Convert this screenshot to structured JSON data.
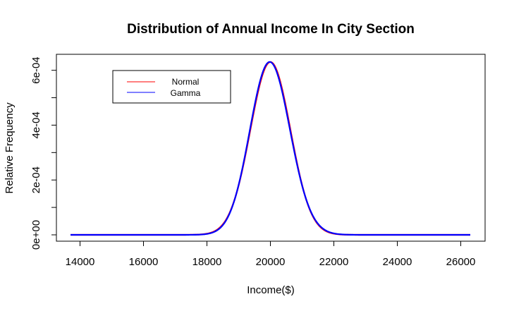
{
  "chart_data": {
    "type": "line",
    "title": "Distribution of Annual Income In City Section",
    "xlabel": "Income($)",
    "ylabel": "Relative Frequency",
    "xlim": [
      13700,
      26300
    ],
    "ylim": [
      0,
      0.00063
    ],
    "x_ticks": [
      14000,
      16000,
      18000,
      20000,
      22000,
      24000,
      26000
    ],
    "x_tick_labels": [
      "14000",
      "16000",
      "18000",
      "20000",
      "22000",
      "24000",
      "26000"
    ],
    "y_ticks": [
      0,
      0.0002,
      0.0004,
      0.0006
    ],
    "y_tick_labels": [
      "0e+00",
      "2e-04",
      "4e-04",
      "6e-04"
    ],
    "y_minor_ticks": [
      0.0001,
      0.0003,
      0.0005
    ],
    "legend": {
      "position": "top-left",
      "entries": [
        {
          "label": "Normal",
          "color": "#ff0000"
        },
        {
          "label": "Gamma",
          "color": "#0000ff"
        }
      ]
    },
    "series": [
      {
        "name": "Normal",
        "color": "#ff0000",
        "distribution": {
          "family": "normal",
          "mean": 20000,
          "sd": 633
        },
        "x": [
          13700,
          14500,
          15500,
          16500,
          17500,
          18000,
          18300,
          18600,
          18900,
          19200,
          19400,
          19600,
          19800,
          20000,
          20200,
          20400,
          20600,
          20800,
          21100,
          21400,
          21700,
          22000,
          22500,
          23500,
          24500,
          25500,
          26300
        ],
        "values": [
          0,
          0,
          0,
          0,
          0,
          4.3e-06,
          1.73e-05,
          5.48e-05,
          0.0001365,
          0.0002659,
          0.0003604,
          0.0004535,
          0.0005993,
          0.00063,
          0.0005993,
          0.0004535,
          0.0003604,
          0.0002659,
          0.0001365,
          5.48e-05,
          1.73e-05,
          4.3e-06,
          3e-07,
          0,
          0,
          0,
          0
        ]
      },
      {
        "name": "Gamma",
        "color": "#0000ff",
        "distribution": {
          "family": "gamma",
          "mean": 20000,
          "sd": 633
        },
        "x": [
          13700,
          14500,
          15500,
          16500,
          17500,
          18000,
          18300,
          18600,
          18900,
          19200,
          19400,
          19600,
          19800,
          20000,
          20200,
          20400,
          20600,
          20800,
          21100,
          21400,
          21700,
          22000,
          22500,
          23500,
          24500,
          25500,
          26300
        ],
        "values": [
          0,
          0,
          0,
          0,
          0,
          3.8e-06,
          1.62e-05,
          5.36e-05,
          0.0001362,
          0.0002664,
          0.000361,
          0.000454,
          0.0005995,
          0.00063,
          0.000599,
          0.000453,
          0.0003598,
          0.0002654,
          0.0001368,
          5.58e-05,
          1.81e-05,
          4.8e-06,
          4e-07,
          0,
          0,
          0,
          0
        ]
      }
    ]
  }
}
